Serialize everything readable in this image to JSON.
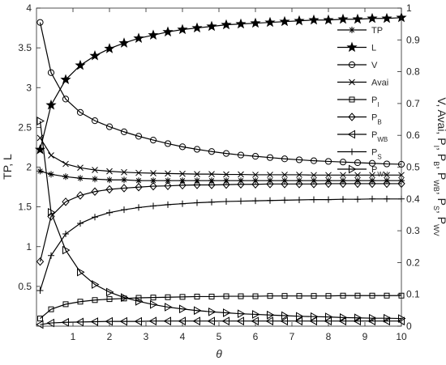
{
  "chart_data": {
    "type": "line",
    "x": [
      0.1,
      0.4,
      0.8,
      1.2,
      1.6,
      2.0,
      2.4,
      2.8,
      3.2,
      3.6,
      4.0,
      4.4,
      4.8,
      5.2,
      5.6,
      6.0,
      6.4,
      6.8,
      7.2,
      7.6,
      8.0,
      8.4,
      8.8,
      9.2,
      9.6,
      10.0
    ],
    "xlabel": "θ",
    "xlim": [
      0,
      10
    ],
    "xticks": [
      1,
      2,
      3,
      4,
      5,
      6,
      7,
      8,
      9,
      10
    ],
    "ylabel_left": "TP, L",
    "ylim_left": [
      0,
      4
    ],
    "yticks_left": [
      "0.5",
      "1",
      "1.5",
      "2",
      "2.5",
      "3",
      "3.5",
      "4"
    ],
    "ylabel_right_parts": [
      {
        "text": "V, Avai, P",
        "sub": false
      },
      {
        "text": "I",
        "sub": true
      },
      {
        "text": ", P",
        "sub": false
      },
      {
        "text": "B",
        "sub": true
      },
      {
        "text": ", P",
        "sub": false
      },
      {
        "text": "WB",
        "sub": true
      },
      {
        "text": ", P",
        "sub": false
      },
      {
        "text": "S",
        "sub": true
      },
      {
        "text": ", P",
        "sub": false
      },
      {
        "text": "WV",
        "sub": true
      }
    ],
    "ylim_right": [
      0,
      1
    ],
    "yticks_right": [
      "0",
      "0.1",
      "0.2",
      "0.3",
      "0.4",
      "0.5",
      "0.6",
      "0.7",
      "0.8",
      "0.9",
      "1"
    ],
    "grid": false,
    "legend_position": "top-right",
    "series": [
      {
        "name": "TP",
        "sub": "",
        "axis": "left",
        "marker": "asterisk",
        "values": [
          1.95,
          1.91,
          1.88,
          1.86,
          1.85,
          1.84,
          1.84,
          1.83,
          1.83,
          1.83,
          1.83,
          1.83,
          1.83,
          1.83,
          1.83,
          1.83,
          1.83,
          1.83,
          1.83,
          1.83,
          1.83,
          1.83,
          1.83,
          1.83,
          1.83,
          1.83
        ]
      },
      {
        "name": "L",
        "sub": "",
        "axis": "left",
        "marker": "star",
        "values": [
          2.22,
          2.78,
          3.1,
          3.28,
          3.4,
          3.49,
          3.56,
          3.62,
          3.66,
          3.7,
          3.73,
          3.75,
          3.77,
          3.79,
          3.8,
          3.81,
          3.82,
          3.83,
          3.84,
          3.85,
          3.85,
          3.86,
          3.86,
          3.87,
          3.87,
          3.88
        ]
      },
      {
        "name": "V",
        "sub": "",
        "axis": "right",
        "marker": "circle",
        "values": [
          0.955,
          0.797,
          0.714,
          0.672,
          0.646,
          0.627,
          0.611,
          0.597,
          0.585,
          0.574,
          0.564,
          0.556,
          0.549,
          0.543,
          0.538,
          0.534,
          0.53,
          0.526,
          0.523,
          0.52,
          0.518,
          0.516,
          0.514,
          0.512,
          0.51,
          0.509
        ]
      },
      {
        "name": "Avai",
        "sub": "",
        "axis": "right",
        "marker": "x",
        "values": [
          0.592,
          0.537,
          0.51,
          0.498,
          0.491,
          0.487,
          0.484,
          0.482,
          0.481,
          0.48,
          0.479,
          0.478,
          0.478,
          0.477,
          0.477,
          0.476,
          0.476,
          0.476,
          0.476,
          0.475,
          0.475,
          0.475,
          0.475,
          0.475,
          0.475,
          0.475
        ]
      },
      {
        "name": "P",
        "sub": "I",
        "axis": "right",
        "marker": "square",
        "values": [
          0.024,
          0.053,
          0.069,
          0.077,
          0.082,
          0.085,
          0.087,
          0.089,
          0.09,
          0.091,
          0.092,
          0.093,
          0.093,
          0.094,
          0.094,
          0.094,
          0.095,
          0.095,
          0.095,
          0.095,
          0.095,
          0.096,
          0.096,
          0.096,
          0.096,
          0.096
        ]
      },
      {
        "name": "P",
        "sub": "B",
        "axis": "right",
        "marker": "diamond",
        "values": [
          0.203,
          0.345,
          0.391,
          0.411,
          0.423,
          0.43,
          0.434,
          0.437,
          0.44,
          0.441,
          0.443,
          0.444,
          0.444,
          0.445,
          0.446,
          0.446,
          0.447,
          0.447,
          0.447,
          0.447,
          0.448,
          0.448,
          0.448,
          0.448,
          0.448,
          0.448
        ]
      },
      {
        "name": "P",
        "sub": "WB",
        "axis": "right",
        "marker": "tri-left",
        "values": [
          0.005,
          0.01,
          0.012,
          0.013,
          0.014,
          0.015,
          0.015,
          0.015,
          0.016,
          0.016,
          0.016,
          0.016,
          0.016,
          0.016,
          0.016,
          0.016,
          0.016,
          0.016,
          0.016,
          0.016,
          0.016,
          0.016,
          0.016,
          0.016,
          0.016,
          0.016
        ]
      },
      {
        "name": "P",
        "sub": "S",
        "axis": "right",
        "marker": "plus",
        "values": [
          0.112,
          0.222,
          0.29,
          0.323,
          0.343,
          0.357,
          0.366,
          0.373,
          0.378,
          0.382,
          0.385,
          0.388,
          0.39,
          0.392,
          0.393,
          0.394,
          0.395,
          0.396,
          0.397,
          0.398,
          0.398,
          0.399,
          0.399,
          0.4,
          0.4,
          0.4
        ]
      },
      {
        "name": "P",
        "sub": "WV",
        "axis": "right",
        "marker": "tri-right",
        "values": [
          0.645,
          0.358,
          0.239,
          0.17,
          0.131,
          0.107,
          0.09,
          0.078,
          0.068,
          0.06,
          0.054,
          0.049,
          0.045,
          0.042,
          0.039,
          0.037,
          0.035,
          0.033,
          0.031,
          0.03,
          0.029,
          0.027,
          0.026,
          0.025,
          0.025,
          0.024
        ]
      }
    ]
  }
}
